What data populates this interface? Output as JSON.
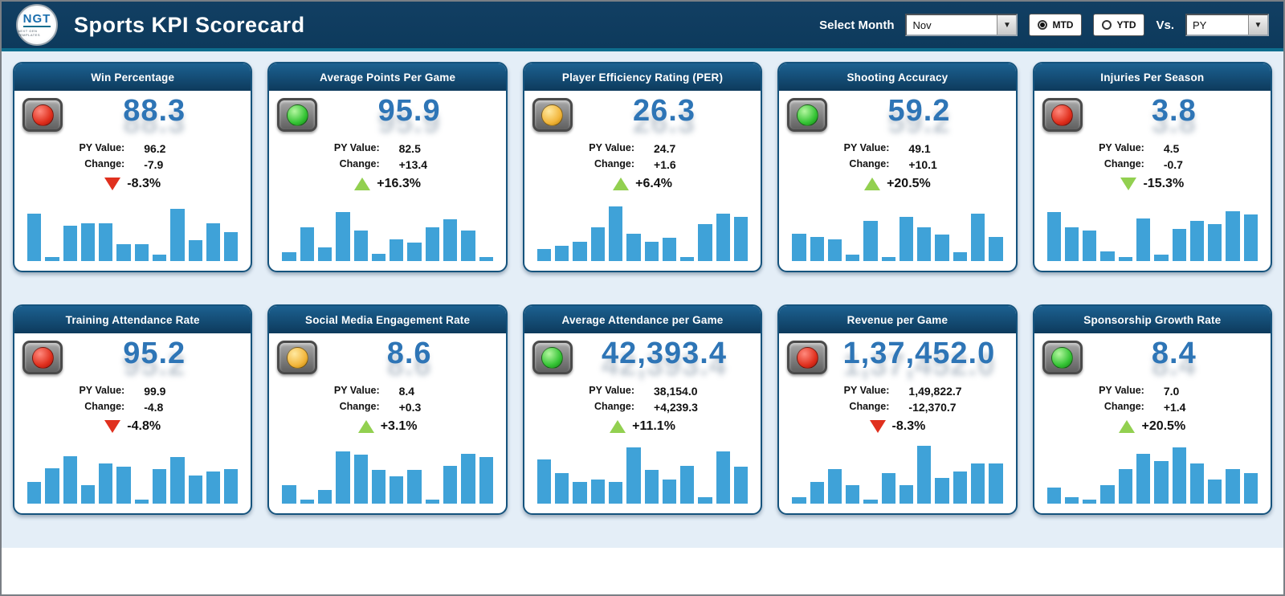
{
  "header": {
    "logo_text": "NGT",
    "logo_subtext": "NEXT GEN TEMPLATES",
    "title": "Sports KPI Scorecard",
    "select_month_label": "Select Month",
    "month_value": "Nov",
    "mtd_label": "MTD",
    "ytd_label": "YTD",
    "mtd_selected": true,
    "vs_label": "Vs.",
    "vs_value": "PY",
    "dropdown_arrow": "▼"
  },
  "labels": {
    "py_value": "PY Value:",
    "change": "Change:"
  },
  "colors": {
    "header_bg": "#0d3a5c",
    "accent_teal": "#0e6e8e",
    "value_blue": "#2e75b6",
    "bar_blue": "#3fa2d8",
    "up_green": "#92d050",
    "down_red": "#e0301e"
  },
  "cards": [
    {
      "title": "Win Percentage",
      "light": "red",
      "value": "88.3",
      "py_value": "96.2",
      "change": "-7.9",
      "pct": "-8.3%",
      "direction": "down",
      "arrow_color": "red",
      "bars": [
        0.78,
        0.06,
        0.58,
        0.62,
        0.62,
        0.28,
        0.28,
        0.1,
        0.85,
        0.34,
        0.62,
        0.48
      ]
    },
    {
      "title": "Average Points Per Game",
      "light": "green",
      "value": "95.9",
      "py_value": "82.5",
      "change": "+13.4",
      "pct": "+16.3%",
      "direction": "up",
      "arrow_color": "green",
      "bars": [
        0.14,
        0.55,
        0.22,
        0.8,
        0.5,
        0.12,
        0.35,
        0.3,
        0.55,
        0.68,
        0.5,
        0.06
      ]
    },
    {
      "title": "Player Efficiency Rating (PER)",
      "light": "amber",
      "value": "26.3",
      "py_value": "24.7",
      "change": "+1.6",
      "pct": "+6.4%",
      "direction": "up",
      "arrow_color": "green",
      "bars": [
        0.2,
        0.25,
        0.32,
        0.55,
        0.9,
        0.45,
        0.32,
        0.38,
        0.06,
        0.6,
        0.78,
        0.72
      ]
    },
    {
      "title": "Shooting Accuracy",
      "light": "green",
      "value": "59.2",
      "py_value": "49.1",
      "change": "+10.1",
      "pct": "+20.5%",
      "direction": "up",
      "arrow_color": "green",
      "bars": [
        0.45,
        0.4,
        0.36,
        0.1,
        0.66,
        0.06,
        0.72,
        0.55,
        0.44,
        0.14,
        0.78,
        0.4
      ]
    },
    {
      "title": "Injuries Per Season",
      "light": "red",
      "value": "3.8",
      "py_value": "4.5",
      "change": "-0.7",
      "pct": "-15.3%",
      "direction": "down",
      "arrow_color": "green",
      "bars": [
        0.8,
        0.55,
        0.5,
        0.16,
        0.06,
        0.7,
        0.1,
        0.52,
        0.66,
        0.6,
        0.82,
        0.76
      ]
    },
    {
      "title": "Training Attendance Rate",
      "light": "red",
      "value": "95.2",
      "py_value": "99.9",
      "change": "-4.8",
      "pct": "-4.8%",
      "direction": "down",
      "arrow_color": "red",
      "bars": [
        0.36,
        0.58,
        0.78,
        0.3,
        0.66,
        0.6,
        0.06,
        0.56,
        0.76,
        0.46,
        0.52,
        0.56
      ]
    },
    {
      "title": "Social Media Engagement Rate",
      "light": "amber",
      "value": "8.6",
      "py_value": "8.4",
      "change": "+0.3",
      "pct": "+3.1%",
      "direction": "up",
      "arrow_color": "green",
      "bars": [
        0.3,
        0.06,
        0.22,
        0.85,
        0.8,
        0.55,
        0.45,
        0.55,
        0.06,
        0.62,
        0.82,
        0.76
      ]
    },
    {
      "title": "Average Attendance per Game",
      "light": "green",
      "value": "42,393.4",
      "py_value": "38,154.0",
      "change": "+4,239.3",
      "pct": "+11.1%",
      "direction": "up",
      "arrow_color": "green",
      "bars": [
        0.72,
        0.5,
        0.36,
        0.4,
        0.36,
        0.92,
        0.55,
        0.4,
        0.62,
        0.1,
        0.86,
        0.6
      ]
    },
    {
      "title": "Revenue per Game",
      "light": "red",
      "value": "1,37,452.0",
      "py_value": "1,49,822.7",
      "change": "-12,370.7",
      "pct": "-8.3%",
      "direction": "down",
      "arrow_color": "red",
      "bars": [
        0.1,
        0.36,
        0.56,
        0.3,
        0.06,
        0.5,
        0.3,
        0.95,
        0.42,
        0.52,
        0.66,
        0.66
      ]
    },
    {
      "title": "Sponsorship Growth Rate",
      "light": "green",
      "value": "8.4",
      "py_value": "7.0",
      "change": "+1.4",
      "pct": "+20.5%",
      "direction": "up",
      "arrow_color": "green",
      "bars": [
        0.26,
        0.1,
        0.06,
        0.3,
        0.56,
        0.82,
        0.7,
        0.92,
        0.66,
        0.4,
        0.56,
        0.5
      ]
    }
  ]
}
